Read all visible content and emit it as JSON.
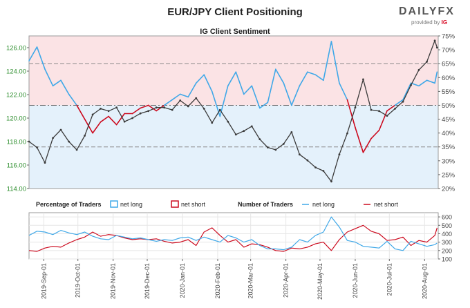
{
  "header": {
    "title": "EUR/JPY Client Positioning",
    "subtitle": "IG Client Sentiment",
    "logo_text": "DAILYFX",
    "logo_sub": "provided by",
    "logo_ig": "IG"
  },
  "colors": {
    "net_long": "#3fa8e8",
    "net_short": "#cc0a1e",
    "price": "#3a3a3a",
    "upper_fill": "#fbe3e5",
    "lower_fill": "#e4f1fb"
  },
  "legend": {
    "pct_label": "Percentage of Traders",
    "num_label": "Number of Traders",
    "net_long": "net long",
    "net_short": "net short"
  },
  "chart_data": {
    "type": "line",
    "main": {
      "price_ylim": [
        114.0,
        127.0
      ],
      "price_ticks": [
        "114.00",
        "116.00",
        "118.00",
        "120.00",
        "122.00",
        "124.00",
        "126.00"
      ],
      "pct_ylim": [
        20,
        75
      ],
      "pct_ticks": [
        "20%",
        "25%",
        "30%",
        "35%",
        "40%",
        "45%",
        "50%",
        "55%",
        "60%",
        "65%",
        "70%",
        "75%"
      ],
      "price_series": {
        "x": [
          "2019-08-19",
          "2019-08-26",
          "2019-09-02",
          "2019-09-09",
          "2019-09-16",
          "2019-09-23",
          "2019-09-30",
          "2019-10-07",
          "2019-10-14",
          "2019-10-21",
          "2019-10-28",
          "2019-11-04",
          "2019-11-11",
          "2019-11-18",
          "2019-11-25",
          "2019-12-02",
          "2019-12-09",
          "2019-12-16",
          "2019-12-23",
          "2019-12-30",
          "2020-01-06",
          "2020-01-13",
          "2020-01-20",
          "2020-01-27",
          "2020-02-03",
          "2020-02-10",
          "2020-02-17",
          "2020-02-24",
          "2020-03-02",
          "2020-03-09",
          "2020-03-16",
          "2020-03-23",
          "2020-03-30",
          "2020-04-06",
          "2020-04-13",
          "2020-04-20",
          "2020-04-27",
          "2020-05-04",
          "2020-05-11",
          "2020-05-18",
          "2020-05-25",
          "2020-06-01",
          "2020-06-08",
          "2020-06-15",
          "2020-06-22",
          "2020-06-29",
          "2020-07-06",
          "2020-07-13",
          "2020-07-20",
          "2020-07-27",
          "2020-08-03",
          "2020-08-10",
          "2020-08-12"
        ],
        "y": [
          118.0,
          117.5,
          116.2,
          118.3,
          119.0,
          118.0,
          117.3,
          118.5,
          120.3,
          120.8,
          120.6,
          120.9,
          119.7,
          120.0,
          120.4,
          120.6,
          120.9,
          120.9,
          120.7,
          121.5,
          121.0,
          121.7,
          120.8,
          119.6,
          120.7,
          119.7,
          118.6,
          118.9,
          119.3,
          118.2,
          117.5,
          117.3,
          117.8,
          118.8,
          116.9,
          116.4,
          115.8,
          115.5,
          114.6,
          116.9,
          118.7,
          120.9,
          123.3,
          120.7,
          120.6,
          120.2,
          120.8,
          121.4,
          122.8,
          124.1,
          124.8,
          126.6,
          126.0
        ]
      },
      "pct_long_series": {
        "x": [
          "2019-08-19",
          "2019-08-26",
          "2019-09-02",
          "2019-09-09",
          "2019-09-16",
          "2019-09-23",
          "2019-09-30",
          "2019-10-07",
          "2019-10-14",
          "2019-10-21",
          "2019-10-28",
          "2019-11-04",
          "2019-11-11",
          "2019-11-18",
          "2019-11-25",
          "2019-12-02",
          "2019-12-09",
          "2019-12-16",
          "2019-12-23",
          "2019-12-30",
          "2020-01-06",
          "2020-01-13",
          "2020-01-20",
          "2020-01-27",
          "2020-02-03",
          "2020-02-10",
          "2020-02-17",
          "2020-02-24",
          "2020-03-02",
          "2020-03-09",
          "2020-03-16",
          "2020-03-23",
          "2020-03-30",
          "2020-04-06",
          "2020-04-13",
          "2020-04-20",
          "2020-04-27",
          "2020-05-04",
          "2020-05-11",
          "2020-05-18",
          "2020-05-25",
          "2020-06-01",
          "2020-06-08",
          "2020-06-15",
          "2020-06-22",
          "2020-06-29",
          "2020-07-06",
          "2020-07-13",
          "2020-07-20",
          "2020-07-27",
          "2020-08-03",
          "2020-08-10",
          "2020-08-12"
        ],
        "y": [
          66,
          71,
          63,
          57,
          59,
          54,
          50,
          45,
          40,
          44,
          46,
          43,
          47,
          47,
          49,
          50,
          48,
          50,
          52,
          54,
          53,
          58,
          61,
          55,
          46,
          57,
          62,
          54,
          57,
          49,
          51,
          63,
          58,
          50,
          57,
          62,
          61,
          59,
          73,
          58,
          52,
          42,
          33,
          38,
          41,
          48,
          50,
          52,
          58,
          57,
          59,
          58,
          62
        ]
      },
      "price_label_color": "#2f8f2f"
    },
    "bottom": {
      "ylim": [
        100,
        650
      ],
      "yticks": [
        "100",
        "200",
        "300",
        "400",
        "500",
        "600"
      ],
      "x_tick_labels": [
        "2019-Sep-01",
        "2019-Oct-01",
        "2019-Nov-01",
        "2019-Dec-01",
        "2020-Jan-01",
        "2020-Feb-01",
        "2020-Mar-01",
        "2020-Apr-01",
        "2020-May-01",
        "2020-Jun-01",
        "2020-Jul-01",
        "2020-Aug-01"
      ],
      "x_tick_dates": [
        "2019-09-01",
        "2019-10-01",
        "2019-11-01",
        "2019-12-01",
        "2020-01-01",
        "2020-02-01",
        "2020-03-01",
        "2020-04-01",
        "2020-05-01",
        "2020-06-01",
        "2020-07-01",
        "2020-08-01"
      ],
      "x_range": [
        "2019-08-19",
        "2020-08-13"
      ],
      "net_long": {
        "x": [
          "2019-08-19",
          "2019-08-26",
          "2019-09-02",
          "2019-09-09",
          "2019-09-16",
          "2019-09-23",
          "2019-09-30",
          "2019-10-07",
          "2019-10-14",
          "2019-10-21",
          "2019-10-28",
          "2019-11-04",
          "2019-11-11",
          "2019-11-18",
          "2019-11-25",
          "2019-12-02",
          "2019-12-09",
          "2019-12-16",
          "2019-12-23",
          "2019-12-30",
          "2020-01-06",
          "2020-01-13",
          "2020-01-20",
          "2020-01-27",
          "2020-02-03",
          "2020-02-10",
          "2020-02-17",
          "2020-02-24",
          "2020-03-02",
          "2020-03-09",
          "2020-03-16",
          "2020-03-23",
          "2020-03-30",
          "2020-04-06",
          "2020-04-13",
          "2020-04-20",
          "2020-04-27",
          "2020-05-04",
          "2020-05-11",
          "2020-05-18",
          "2020-05-25",
          "2020-06-01",
          "2020-06-08",
          "2020-06-15",
          "2020-06-22",
          "2020-06-29",
          "2020-07-06",
          "2020-07-13",
          "2020-07-20",
          "2020-07-27",
          "2020-08-03",
          "2020-08-10",
          "2020-08-12"
        ],
        "y": [
          380,
          430,
          420,
          390,
          440,
          410,
          390,
          420,
          370,
          340,
          330,
          380,
          360,
          340,
          350,
          330,
          310,
          330,
          320,
          350,
          360,
          320,
          360,
          330,
          300,
          380,
          350,
          300,
          330,
          260,
          220,
          220,
          210,
          240,
          330,
          300,
          380,
          420,
          600,
          480,
          320,
          300,
          250,
          240,
          230,
          310,
          220,
          200,
          310,
          280,
          250,
          270,
          290
        ]
      },
      "net_short": {
        "x": [
          "2019-08-19",
          "2019-08-26",
          "2019-09-02",
          "2019-09-09",
          "2019-09-16",
          "2019-09-23",
          "2019-09-30",
          "2019-10-07",
          "2019-10-14",
          "2019-10-21",
          "2019-10-28",
          "2019-11-04",
          "2019-11-11",
          "2019-11-18",
          "2019-11-25",
          "2019-12-02",
          "2019-12-09",
          "2019-12-16",
          "2019-12-23",
          "2019-12-30",
          "2020-01-06",
          "2020-01-13",
          "2020-01-20",
          "2020-01-27",
          "2020-02-03",
          "2020-02-10",
          "2020-02-17",
          "2020-02-24",
          "2020-03-02",
          "2020-03-09",
          "2020-03-16",
          "2020-03-23",
          "2020-03-30",
          "2020-04-06",
          "2020-04-13",
          "2020-04-20",
          "2020-04-27",
          "2020-05-04",
          "2020-05-11",
          "2020-05-18",
          "2020-05-25",
          "2020-06-01",
          "2020-06-08",
          "2020-06-15",
          "2020-06-22",
          "2020-06-29",
          "2020-07-06",
          "2020-07-13",
          "2020-07-20",
          "2020-07-27",
          "2020-08-03",
          "2020-08-10",
          "2020-08-12"
        ],
        "y": [
          200,
          190,
          230,
          250,
          240,
          290,
          330,
          360,
          420,
          370,
          390,
          380,
          350,
          330,
          340,
          330,
          340,
          310,
          290,
          300,
          330,
          260,
          420,
          470,
          380,
          300,
          330,
          240,
          280,
          270,
          240,
          200,
          190,
          230,
          220,
          240,
          280,
          300,
          200,
          330,
          420,
          460,
          500,
          430,
          400,
          320,
          330,
          360,
          260,
          320,
          300,
          380,
          470
        ]
      }
    }
  }
}
